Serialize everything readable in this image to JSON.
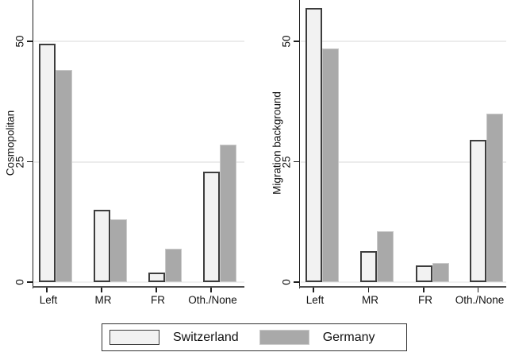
{
  "legend": {
    "items": [
      {
        "label": "Switzerland",
        "fill": "#f2f2f2",
        "border": "#3d3d3d"
      },
      {
        "label": "Germany",
        "fill": "#a9a9a9",
        "border": "#c9c9c9"
      }
    ]
  },
  "colors": {
    "switzerland_fill": "#f2f2f2",
    "switzerland_border": "#3d3d3d",
    "germany_fill": "#a9a9a9",
    "germany_border": "#c9c9c9",
    "gridline": "#ececec",
    "zero_gridline": "#f0f0f0",
    "axis": "#1f1f1f",
    "x_axis": "#4f4f4f",
    "text": "#111111",
    "background": "#ffffff"
  },
  "chart_data": [
    {
      "type": "bar",
      "title": "",
      "ylabel": "Cosmopolitan",
      "xlabel": "",
      "categories": [
        "Left",
        "MR",
        "FR",
        "Oth./None"
      ],
      "series": [
        {
          "name": "Switzerland",
          "values": [
            49.5,
            15,
            2,
            23
          ]
        },
        {
          "name": "Germany",
          "values": [
            44,
            13,
            7,
            28.5
          ]
        }
      ],
      "ylim": [
        0,
        58.5
      ],
      "yticks": [
        0,
        25,
        50
      ],
      "grid": true,
      "legend_position": "bottom"
    },
    {
      "type": "bar",
      "title": "",
      "ylabel": "Migration background",
      "xlabel": "",
      "categories": [
        "Left",
        "MR",
        "FR",
        "Oth./None"
      ],
      "series": [
        {
          "name": "Switzerland",
          "values": [
            57,
            6.5,
            3.5,
            29.5
          ]
        },
        {
          "name": "Germany",
          "values": [
            48.5,
            10.5,
            4,
            35
          ]
        }
      ],
      "ylim": [
        0,
        58.5
      ],
      "yticks": [
        0,
        25,
        50
      ],
      "grid": true,
      "legend_position": "bottom"
    }
  ]
}
